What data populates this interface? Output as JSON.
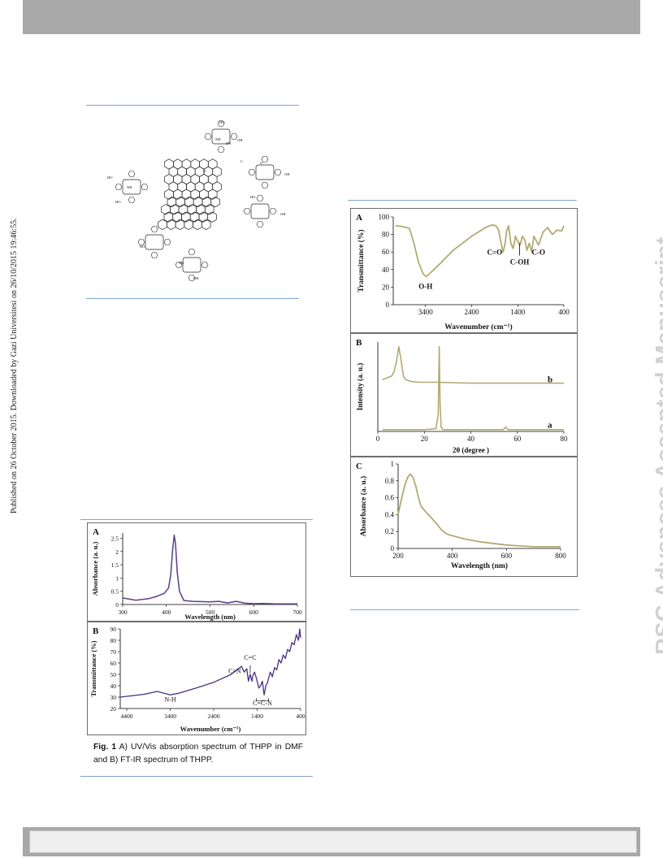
{
  "header": {
    "bar_color": "#a8a8a8"
  },
  "sidebar_note": "Published on 26 October 2015. Downloaded by Gazi Universitesi on 26/10/2015 19:46:55.",
  "watermark": "RSC Advances Accepted Manuscript",
  "scheme": {
    "labels": [
      "HO",
      "OH",
      "NH",
      "HN",
      "N",
      "O",
      "C"
    ]
  },
  "figure1": {
    "caption_label": "Fig. 1",
    "caption_text": " A) UV/Vis absorption spectrum of THPP in DMF and B) FT-IR spectrum of THPP.",
    "panelA": {
      "letter": "A",
      "xlabel": "Wavelength (nm)",
      "ylabel": "Absorbance (a. u.)",
      "xticks": [
        "300",
        "400",
        "500",
        "600",
        "700"
      ],
      "yticks": [
        "0",
        "0.5",
        "1",
        "1.5",
        "2",
        "2.5"
      ]
    },
    "panelB": {
      "letter": "B",
      "xlabel": "Wavenumber (cm⁻¹)",
      "ylabel": "Transmittance (%)",
      "xticks": [
        "4400",
        "3400",
        "2400",
        "1400",
        "400"
      ],
      "yticks": [
        "20",
        "30",
        "40",
        "50",
        "60",
        "70",
        "80",
        "90"
      ],
      "annotations": [
        "N-H",
        "C=C",
        "C=N",
        "C=C-N"
      ]
    }
  },
  "figure2": {
    "panelA": {
      "letter": "A",
      "xlabel": "Wavenumber (cm⁻¹)",
      "ylabel": "Transmittance (%)",
      "xticks": [
        "3400",
        "2400",
        "1400",
        "400"
      ],
      "yticks": [
        "0",
        "20",
        "40",
        "60",
        "80",
        "100"
      ],
      "annotations": [
        "O-H",
        "C=O",
        "C-OH",
        "C-O"
      ]
    },
    "panelB": {
      "letter": "B",
      "xlabel": "2θ (degree )",
      "ylabel": "Intensity (a. u.)",
      "xticks": [
        "0",
        "20",
        "40",
        "60",
        "80"
      ],
      "annotations": [
        "b",
        "a"
      ]
    },
    "panelC": {
      "letter": "C",
      "xlabel": "Wavelength (nm)",
      "ylabel": "Absorbance (a. u.)",
      "xticks": [
        "200",
        "400",
        "600",
        "800"
      ],
      "yticks": [
        "0",
        "0.2",
        "0.4",
        "0.6",
        "0.8",
        "1"
      ]
    }
  },
  "chart_data": [
    {
      "type": "line",
      "color": "#5a3d8a",
      "x": [
        300,
        330,
        360,
        380,
        395,
        405,
        410,
        414,
        418,
        421,
        425,
        430,
        440,
        460,
        500,
        520,
        540,
        560,
        580,
        600,
        620,
        650,
        700
      ],
      "series": [
        {
          "values": [
            0.25,
            0.16,
            0.22,
            0.32,
            0.42,
            0.62,
            1.1,
            2.0,
            2.62,
            2.3,
            1.2,
            0.5,
            0.15,
            0.12,
            0.1,
            0.12,
            0.06,
            0.12,
            0.05,
            0.03,
            0.04,
            0.02,
            0.02
          ]
        }
      ],
      "xlabel": "Wavelength (nm)",
      "ylabel": "Absorbance (a. u.)",
      "xlim": [
        300,
        700
      ],
      "ylim": [
        0,
        2.7
      ]
    },
    {
      "type": "line",
      "color": "#4a2f82",
      "x": [
        4550,
        4000,
        3700,
        3550,
        3400,
        3200,
        2800,
        2400,
        2000,
        1760,
        1700,
        1640,
        1600,
        1560,
        1520,
        1500,
        1460,
        1420,
        1400,
        1360,
        1320,
        1280,
        1240,
        1200,
        1160,
        1100,
        1050,
        1000,
        950,
        900,
        850,
        800,
        750,
        700,
        650,
        600,
        550,
        500,
        450,
        420,
        400
      ],
      "series": [
        {
          "values": [
            30,
            32.5,
            35,
            33.5,
            32,
            33.5,
            38,
            43,
            50,
            57,
            52,
            55,
            44,
            50,
            44,
            49,
            52,
            47,
            44,
            38,
            40,
            44,
            32,
            40,
            43,
            52,
            48,
            56,
            54,
            63,
            60,
            67,
            64,
            72,
            70,
            78,
            76,
            85,
            80,
            90,
            82
          ]
        }
      ],
      "xlabel": "Wavenumber (cm⁻¹)",
      "ylabel": "Transmittance (%)",
      "xlim": [
        4550,
        400
      ],
      "ylim": [
        20,
        90
      ]
    },
    {
      "type": "line",
      "color": "#b2aa72",
      "x": [
        4050,
        3900,
        3750,
        3650,
        3550,
        3450,
        3380,
        3300,
        3100,
        2800,
        2400,
        2100,
        1950,
        1880,
        1820,
        1780,
        1720,
        1680,
        1640,
        1600,
        1550,
        1500,
        1450,
        1400,
        1350,
        1300,
        1250,
        1200,
        1150,
        1100,
        1050,
        950,
        850,
        750,
        650,
        550,
        450,
        400
      ],
      "series": [
        {
          "values": [
            90,
            89,
            87,
            70,
            48,
            35,
            32,
            36,
            46,
            62,
            78,
            88,
            91,
            90,
            86,
            75,
            60,
            68,
            84,
            90,
            70,
            64,
            78,
            72,
            68,
            78,
            74,
            62,
            70,
            60,
            78,
            68,
            83,
            88,
            80,
            85,
            84,
            90
          ]
        }
      ],
      "xlabel": "Wavenumber (cm⁻¹)",
      "ylabel": "Transmittance (%)",
      "xlim": [
        4100,
        400
      ],
      "ylim": [
        0,
        100
      ]
    },
    {
      "type": "line",
      "color": "#b2aa72",
      "series": [
        {
          "name": "b",
          "x": [
            2,
            4,
            6,
            7,
            8,
            9,
            10,
            11,
            12,
            14,
            18,
            25,
            40,
            60,
            80
          ],
          "values": [
            0.58,
            0.6,
            0.62,
            0.67,
            0.78,
            0.95,
            0.8,
            0.62,
            0.58,
            0.56,
            0.55,
            0.55,
            0.54,
            0.54,
            0.54
          ]
        },
        {
          "name": "a",
          "x": [
            2,
            20,
            25,
            26,
            26.4,
            26.8,
            27.2,
            28,
            35,
            45,
            54,
            55,
            56,
            65,
            80
          ],
          "values": [
            0.02,
            0.02,
            0.03,
            0.2,
            0.95,
            0.3,
            0.05,
            0.02,
            0.02,
            0.02,
            0.02,
            0.05,
            0.02,
            0.02,
            0.02
          ]
        }
      ],
      "xlabel": "2θ (degree )",
      "ylabel": "Intensity (a. u.)",
      "xlim": [
        0,
        80
      ]
    },
    {
      "type": "line",
      "color": "#b2aa72",
      "x": [
        200,
        205,
        215,
        225,
        235,
        245,
        255,
        265,
        275,
        285,
        300,
        320,
        340,
        360,
        380,
        400,
        450,
        500,
        550,
        600,
        650,
        700,
        750,
        800
      ],
      "series": [
        {
          "values": [
            0.4,
            0.48,
            0.62,
            0.75,
            0.84,
            0.88,
            0.84,
            0.74,
            0.6,
            0.5,
            0.44,
            0.37,
            0.3,
            0.22,
            0.17,
            0.15,
            0.11,
            0.08,
            0.06,
            0.04,
            0.03,
            0.02,
            0.02,
            0.02
          ]
        }
      ],
      "xlabel": "Wavelength (nm)",
      "ylabel": "Absorbance (a. u.)",
      "xlim": [
        200,
        800
      ],
      "ylim": [
        0,
        1
      ]
    }
  ]
}
